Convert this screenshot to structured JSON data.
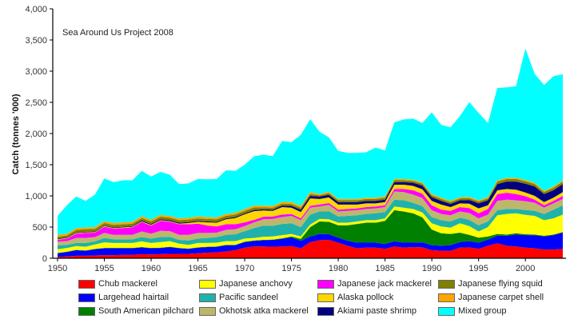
{
  "chart_data": {
    "type": "area",
    "stacked": true,
    "title": "",
    "annotation": "Sea Around Us Project 2008",
    "xlabel": "",
    "ylabel": "Catch (tonnes '000)",
    "xlim": [
      1950,
      2004
    ],
    "ylim": [
      0,
      4000
    ],
    "yticks": [
      0,
      500,
      1000,
      1500,
      2000,
      2500,
      3000,
      3500,
      4000
    ],
    "ytick_labels": [
      "0",
      "500",
      "1,000",
      "1,500",
      "2,000",
      "2,500",
      "3,000",
      "3,500",
      "4,000"
    ],
    "xticks": [
      1950,
      1955,
      1960,
      1965,
      1970,
      1975,
      1980,
      1985,
      1990,
      1995,
      2000
    ],
    "xtick_labels": [
      "1950",
      "1955",
      "1960",
      "1965",
      "1970",
      "1975",
      "1980",
      "1985",
      "1990",
      "1995",
      "2000"
    ],
    "grid": false,
    "legend_position": "bottom",
    "x": [
      1950,
      1951,
      1952,
      1953,
      1954,
      1955,
      1956,
      1957,
      1958,
      1959,
      1960,
      1961,
      1962,
      1963,
      1964,
      1965,
      1966,
      1967,
      1968,
      1969,
      1970,
      1971,
      1972,
      1973,
      1974,
      1975,
      1976,
      1977,
      1978,
      1979,
      1980,
      1981,
      1982,
      1983,
      1984,
      1985,
      1986,
      1987,
      1988,
      1989,
      1990,
      1991,
      1992,
      1993,
      1994,
      1995,
      1996,
      1997,
      1998,
      1999,
      2000,
      2001,
      2002,
      2003,
      2004
    ],
    "series": [
      {
        "name": "Chub mackerel",
        "color": "#ff0000",
        "values": [
          20,
          30,
          40,
          40,
          45,
          50,
          50,
          55,
          55,
          65,
          60,
          65,
          70,
          70,
          70,
          80,
          90,
          95,
          110,
          130,
          170,
          190,
          190,
          185,
          190,
          195,
          160,
          260,
          290,
          295,
          250,
          200,
          160,
          170,
          170,
          150,
          190,
          170,
          180,
          175,
          130,
          120,
          120,
          170,
          175,
          150,
          200,
          240,
          200,
          190,
          170,
          160,
          140,
          140,
          150
        ]
      },
      {
        "name": "Largehead hairtail",
        "color": "#0000ff",
        "values": [
          60,
          70,
          90,
          80,
          100,
          110,
          110,
          105,
          105,
          110,
          100,
          100,
          110,
          90,
          80,
          90,
          90,
          90,
          100,
          80,
          90,
          90,
          100,
          110,
          120,
          140,
          120,
          90,
          100,
          90,
          80,
          80,
          90,
          80,
          80,
          80,
          80,
          80,
          70,
          80,
          80,
          80,
          90,
          90,
          100,
          100,
          100,
          120,
          160,
          190,
          200,
          210,
          210,
          230,
          260
        ]
      },
      {
        "name": "South American pilchard",
        "color": "#008000",
        "values": [
          5,
          5,
          5,
          5,
          5,
          5,
          5,
          5,
          5,
          5,
          5,
          5,
          5,
          5,
          5,
          5,
          5,
          5,
          5,
          5,
          5,
          5,
          5,
          5,
          10,
          15,
          30,
          150,
          200,
          200,
          200,
          250,
          300,
          320,
          320,
          370,
          500,
          500,
          470,
          400,
          250,
          200,
          180,
          150,
          100,
          80,
          50,
          30,
          20,
          20,
          15,
          10,
          10,
          10,
          10
        ]
      },
      {
        "name": "Japanese anchovy",
        "color": "#ffff00",
        "values": [
          60,
          60,
          60,
          60,
          70,
          90,
          80,
          80,
          80,
          90,
          80,
          90,
          90,
          70,
          60,
          70,
          60,
          60,
          60,
          60,
          50,
          40,
          50,
          50,
          50,
          40,
          40,
          40,
          40,
          40,
          40,
          40,
          40,
          40,
          40,
          40,
          60,
          60,
          70,
          80,
          100,
          110,
          100,
          150,
          140,
          100,
          150,
          300,
          330,
          320,
          310,
          300,
          250,
          260,
          280
        ]
      },
      {
        "name": "Pacific sandeel",
        "color": "#20b2aa",
        "values": [
          60,
          50,
          50,
          60,
          50,
          70,
          60,
          60,
          60,
          70,
          70,
          80,
          70,
          60,
          70,
          70,
          80,
          90,
          100,
          110,
          120,
          160,
          180,
          170,
          180,
          170,
          150,
          160,
          120,
          130,
          100,
          110,
          100,
          100,
          110,
          100,
          110,
          120,
          100,
          100,
          100,
          100,
          100,
          90,
          100,
          100,
          90,
          80,
          80,
          70,
          80,
          80,
          100,
          140,
          150
        ]
      },
      {
        "name": "Okhotsk atka mackerel",
        "color": "#bdb76b",
        "values": [
          60,
          60,
          80,
          80,
          70,
          80,
          70,
          70,
          70,
          90,
          80,
          100,
          90,
          80,
          90,
          90,
          80,
          70,
          80,
          80,
          80,
          90,
          100,
          110,
          110,
          120,
          110,
          110,
          80,
          100,
          80,
          80,
          80,
          80,
          80,
          80,
          130,
          130,
          130,
          130,
          110,
          100,
          100,
          100,
          110,
          110,
          110,
          150,
          150,
          140,
          140,
          130,
          100,
          100,
          100
        ]
      },
      {
        "name": "Japanese jack mackerel",
        "color": "#ff00ff",
        "values": [
          30,
          40,
          70,
          80,
          70,
          100,
          100,
          110,
          120,
          150,
          130,
          160,
          150,
          170,
          170,
          150,
          120,
          100,
          90,
          80,
          60,
          40,
          40,
          40,
          40,
          30,
          30,
          30,
          30,
          30,
          30,
          30,
          30,
          30,
          30,
          30,
          40,
          50,
          70,
          70,
          80,
          70,
          70,
          70,
          80,
          80,
          90,
          110,
          110,
          100,
          80,
          50,
          40,
          40,
          50
        ]
      },
      {
        "name": "Alaska pollock",
        "color": "#ffd700",
        "values": [
          10,
          10,
          10,
          10,
          10,
          10,
          10,
          10,
          10,
          10,
          10,
          10,
          10,
          10,
          20,
          30,
          50,
          60,
          80,
          100,
          130,
          140,
          100,
          90,
          120,
          100,
          100,
          120,
          90,
          90,
          80,
          70,
          60,
          60,
          50,
          50,
          70,
          70,
          70,
          70,
          70,
          80,
          60,
          60,
          70,
          80,
          60,
          60,
          60,
          70,
          60,
          60,
          50,
          50,
          60
        ]
      },
      {
        "name": "Akiami paste shrimp",
        "color": "#000080",
        "values": [
          10,
          10,
          10,
          10,
          10,
          10,
          10,
          10,
          10,
          15,
          15,
          15,
          15,
          15,
          15,
          15,
          15,
          15,
          15,
          15,
          15,
          20,
          20,
          20,
          25,
          30,
          40,
          40,
          40,
          40,
          40,
          40,
          40,
          40,
          40,
          40,
          40,
          40,
          50,
          60,
          60,
          60,
          50,
          50,
          60,
          80,
          80,
          100,
          120,
          130,
          140,
          150,
          130,
          120,
          130
        ]
      },
      {
        "name": "Japanese flying squid",
        "color": "#808000",
        "values": [
          30,
          30,
          40,
          40,
          40,
          40,
          40,
          40,
          40,
          40,
          40,
          40,
          40,
          40,
          40,
          40,
          40,
          40,
          40,
          40,
          40,
          40,
          30,
          30,
          30,
          30,
          30,
          30,
          20,
          30,
          30,
          30,
          30,
          30,
          30,
          30,
          30,
          30,
          30,
          30,
          30,
          30,
          30,
          30,
          30,
          30,
          30,
          40,
          40,
          40,
          40,
          40,
          30,
          40,
          40
        ]
      },
      {
        "name": "Japanese carpet shell",
        "color": "#ffa500",
        "values": [
          30,
          30,
          30,
          30,
          30,
          30,
          30,
          30,
          30,
          30,
          30,
          30,
          30,
          30,
          30,
          30,
          30,
          30,
          30,
          30,
          30,
          30,
          30,
          30,
          30,
          30,
          30,
          30,
          20,
          20,
          20,
          20,
          20,
          20,
          20,
          20,
          20,
          20,
          20,
          20,
          20,
          20,
          20,
          20,
          20,
          20,
          20,
          20,
          20,
          20,
          20,
          20,
          20,
          20,
          20
        ]
      },
      {
        "name": "Mixed group",
        "color": "#00ffff",
        "values": [
          305,
          455,
          505,
          425,
          520,
          685,
          655,
          675,
          665,
          725,
          690,
          690,
          660,
          550,
          550,
          600,
          605,
          615,
          700,
          670,
          710,
          790,
          815,
          800,
          975,
          960,
          1140,
          1170,
          1000,
          875,
          770,
          740,
          740,
          730,
          805,
          740,
          910,
          955,
          980,
          955,
          1310,
          1170,
          1180,
          1300,
          1520,
          1400,
          1190,
          1480,
          1450,
          1470,
          2105,
          1745,
          1700,
          1770,
          1700
        ]
      }
    ]
  }
}
